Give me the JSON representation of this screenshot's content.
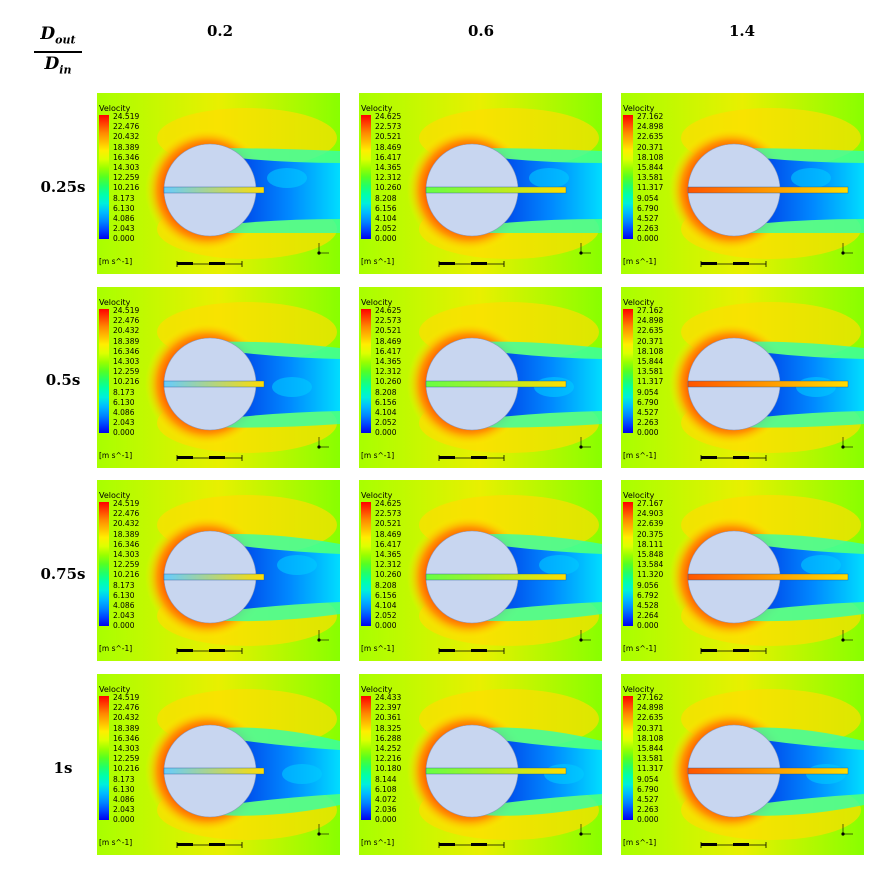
{
  "ratio_label": {
    "numerator": "D",
    "numerator_sub": "out",
    "denominator": "D",
    "denominator_sub": "in"
  },
  "columns": [
    "0.2",
    "0.6",
    "1.4"
  ],
  "rows": [
    "0.25s",
    "0.5s",
    "0.75s",
    "1s"
  ],
  "legend_title": "Velocity",
  "legend_unit": "[m s^-1]",
  "colorbar": [
    "#ff0000",
    "#ff4400",
    "#ff8800",
    "#ffbb00",
    "#ffee00",
    "#ddff00",
    "#99ff00",
    "#55ff22",
    "#22ff66",
    "#00ffaa",
    "#00eedd",
    "#00bbff",
    "#0088ff",
    "#0044ff",
    "#0000ee"
  ],
  "legends": [
    [
      [
        "24.519",
        "22.476",
        "20.432",
        "18.389",
        "16.346",
        "14.303",
        "12.259",
        "10.216",
        "8.173",
        "6.130",
        "4.086",
        "2.043",
        "0.000"
      ],
      [
        "24.625",
        "22.573",
        "20.521",
        "18.469",
        "16.417",
        "14.365",
        "12.312",
        "10.260",
        "8.208",
        "6.156",
        "4.104",
        "2.052",
        "0.000"
      ],
      [
        "27.162",
        "24.898",
        "22.635",
        "20.371",
        "18.108",
        "15.844",
        "13.581",
        "11.317",
        "9.054",
        "6.790",
        "4.527",
        "2.263",
        "0.000"
      ]
    ],
    [
      [
        "24.519",
        "22.476",
        "20.432",
        "18.389",
        "16.346",
        "14.303",
        "12.259",
        "10.216",
        "8.173",
        "6.130",
        "4.086",
        "2.043",
        "0.000"
      ],
      [
        "24.625",
        "22.573",
        "20.521",
        "18.469",
        "16.417",
        "14.365",
        "12.312",
        "10.260",
        "8.208",
        "6.156",
        "4.104",
        "2.052",
        "0.000"
      ],
      [
        "27.162",
        "24.898",
        "22.635",
        "20.371",
        "18.108",
        "15.844",
        "13.581",
        "11.317",
        "9.054",
        "6.790",
        "4.527",
        "2.263",
        "0.000"
      ]
    ],
    [
      [
        "24.519",
        "22.476",
        "20.432",
        "18.389",
        "16.346",
        "14.303",
        "12.259",
        "10.216",
        "8.173",
        "6.130",
        "4.086",
        "2.043",
        "0.000"
      ],
      [
        "24.625",
        "22.573",
        "20.521",
        "18.469",
        "16.417",
        "14.365",
        "12.312",
        "10.260",
        "8.208",
        "6.156",
        "4.104",
        "2.052",
        "0.000"
      ],
      [
        "27.167",
        "24.903",
        "22.639",
        "20.375",
        "18.111",
        "15.848",
        "13.584",
        "11.320",
        "9.056",
        "6.792",
        "4.528",
        "2.264",
        "0.000"
      ]
    ],
    [
      [
        "24.519",
        "22.476",
        "20.432",
        "18.389",
        "16.346",
        "14.303",
        "12.259",
        "10.216",
        "8.173",
        "6.130",
        "4.086",
        "2.043",
        "0.000"
      ],
      [
        "24.433",
        "22.397",
        "20.361",
        "18.325",
        "16.288",
        "14.252",
        "12.216",
        "10.180",
        "8.144",
        "6.108",
        "4.072",
        "2.036",
        "0.000"
      ],
      [
        "27.162",
        "24.898",
        "22.635",
        "20.371",
        "18.108",
        "15.844",
        "13.581",
        "11.317",
        "9.054",
        "6.790",
        "4.527",
        "2.263",
        "0.000"
      ]
    ]
  ],
  "jet_color": [
    "#66ccff",
    "#66ff44",
    "#ff5500"
  ]
}
